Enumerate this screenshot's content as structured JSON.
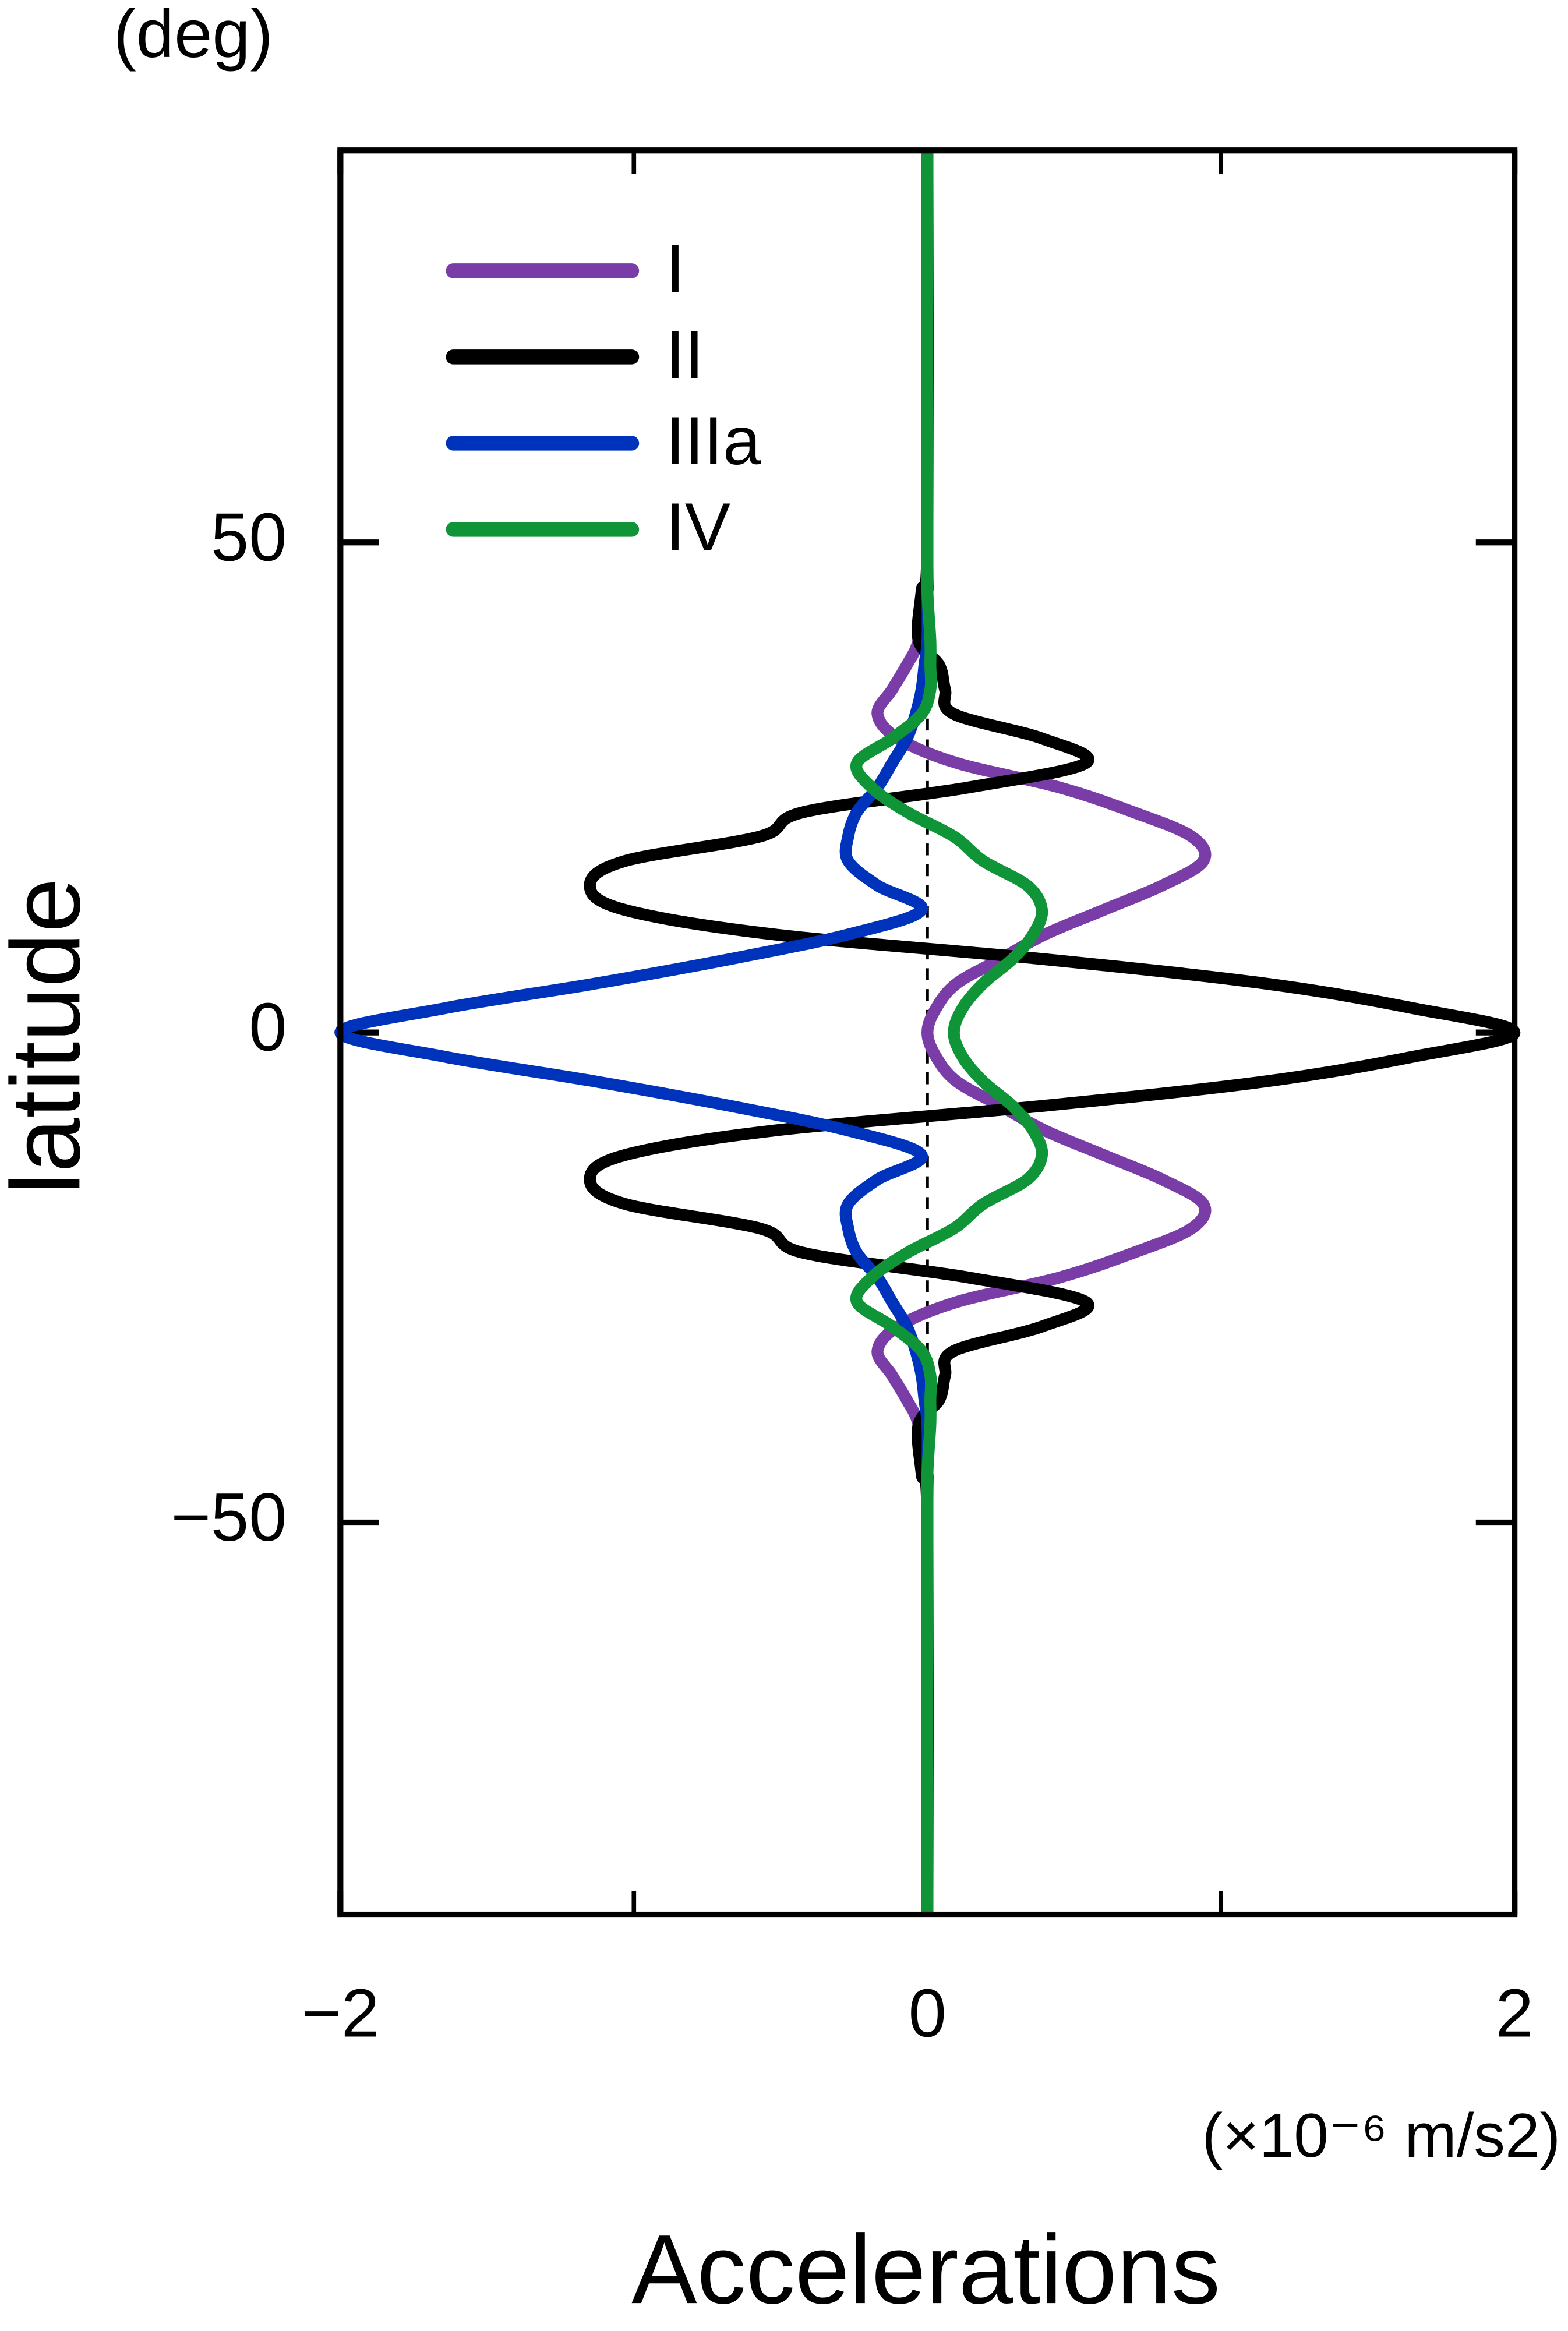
{
  "chart_data": {
    "type": "line",
    "y_unit": "(deg)",
    "y_label": "latitude",
    "x_label": "Accelerations",
    "x_unit": "(×10⁻⁶ m/s2)",
    "latitude": [
      -90,
      -50,
      -45,
      -40,
      -37.5,
      -35,
      -32.5,
      -30,
      -27.5,
      -25,
      -22.5,
      -20,
      -17.5,
      -15,
      -12.5,
      -10,
      -7.5,
      -5,
      -2.5,
      0,
      2.5,
      5,
      7.5,
      10,
      12.5,
      15,
      17.5,
      20,
      22.5,
      25,
      27.5,
      30,
      32.5,
      35,
      37.5,
      40,
      45,
      50,
      90
    ],
    "series": [
      {
        "name": "I",
        "color": "#7a3ca6",
        "values": [
          0,
          0,
          0,
          -0.03,
          -0.07,
          -0.12,
          -0.17,
          -0.1,
          0.1,
          0.45,
          0.7,
          0.9,
          0.94,
          0.8,
          0.6,
          0.4,
          0.25,
          0.1,
          0.03,
          0,
          0.03,
          0.1,
          0.25,
          0.4,
          0.6,
          0.8,
          0.94,
          0.9,
          0.7,
          0.45,
          0.1,
          -0.1,
          -0.17,
          -0.12,
          -0.07,
          -0.03,
          0,
          0,
          0
        ]
      },
      {
        "name": "II",
        "color": "#000000",
        "values": [
          0,
          0,
          -0.02,
          -0.03,
          0.04,
          0.06,
          0.09,
          0.39,
          0.54,
          0.14,
          -0.42,
          -0.57,
          -1.03,
          -1.15,
          -1.03,
          -0.52,
          0.39,
          1.15,
          1.65,
          2,
          1.65,
          1.15,
          0.39,
          -0.52,
          -1.03,
          -1.15,
          -1.03,
          -0.57,
          -0.42,
          0.14,
          0.54,
          0.39,
          0.09,
          0.06,
          0.04,
          -0.03,
          -0.02,
          0,
          0
        ]
      },
      {
        "name": "IIIa",
        "color": "#0033bb",
        "values": [
          0,
          0,
          0,
          0,
          -0.01,
          -0.02,
          -0.04,
          -0.07,
          -0.12,
          -0.17,
          -0.24,
          -0.27,
          -0.27,
          -0.17,
          -0.02,
          -0.27,
          -0.67,
          -1.13,
          -1.64,
          -2,
          -1.64,
          -1.13,
          -0.67,
          -0.27,
          -0.02,
          -0.17,
          -0.27,
          -0.27,
          -0.24,
          -0.17,
          -0.12,
          -0.07,
          -0.04,
          -0.02,
          -0.01,
          0,
          0,
          0,
          0
        ]
      },
      {
        "name": "IV",
        "color": "#0f9438",
        "values": [
          0,
          0,
          0,
          0.01,
          0.01,
          0.01,
          -0.02,
          -0.12,
          -0.24,
          -0.19,
          -0.07,
          0.09,
          0.19,
          0.34,
          0.39,
          0.36,
          0.29,
          0.19,
          0.12,
          0.09,
          0.12,
          0.19,
          0.29,
          0.36,
          0.39,
          0.34,
          0.19,
          0.09,
          -0.07,
          -0.19,
          -0.24,
          -0.12,
          -0.02,
          0.01,
          0.01,
          0.01,
          0,
          0,
          0
        ]
      }
    ],
    "xlim": [
      -2,
      2
    ],
    "ylim": [
      -90,
      90
    ],
    "xticks": [
      {
        "value": -2,
        "label": "−2"
      },
      0,
      2
    ],
    "xminor_ticks": [
      -1,
      1
    ],
    "yticks": [
      {
        "value": -50,
        "label": "−50"
      },
      0,
      50
    ],
    "reference_line": {
      "x": 0,
      "from": -35,
      "to": 35,
      "style": "dashed"
    },
    "legend": "top-left"
  }
}
